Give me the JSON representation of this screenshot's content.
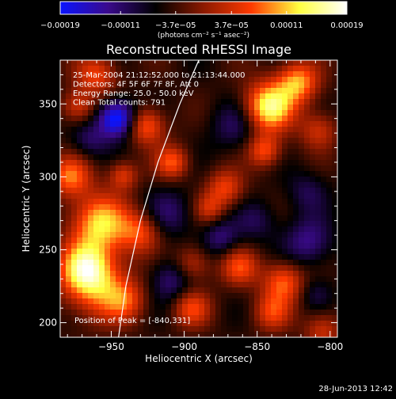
{
  "footer": {
    "timestamp": "28-Jun-2013 12:42"
  },
  "chart_data": {
    "type": "heatmap",
    "title": "Reconstructed RHESSI Image",
    "xlabel": "Heliocentric X (arcsec)",
    "ylabel": "Heliocentric Y (arcsec)",
    "xlim": [
      -985,
      -795
    ],
    "ylim": [
      190,
      380
    ],
    "x_ticks": [
      -950,
      -900,
      -850,
      -800
    ],
    "x_tick_labels": [
      "−950",
      "−900",
      "−850",
      "−800"
    ],
    "y_ticks": [
      200,
      250,
      300,
      350
    ],
    "y_tick_labels": [
      "200",
      "250",
      "300",
      "350"
    ],
    "colorbar": {
      "ticks": [
        -0.00019,
        -0.00011,
        -3.7e-05,
        3.7e-05,
        0.00011,
        0.00019
      ],
      "tick_labels": [
        "−0.00019",
        "−0.00011",
        "−3.7e−05",
        "3.7e−05",
        "0.00011",
        "0.00019"
      ],
      "range": [
        -0.00019,
        0.00019
      ],
      "units": "(photons cm⁻² s⁻¹ asec⁻²)",
      "colors": [
        "#0a14ff",
        "#3a0a8c",
        "#000000",
        "#8c1a00",
        "#ff3a00",
        "#ffff40",
        "#ffffff"
      ]
    },
    "annotations": [
      "25-Mar-2004 21:12:52.000 to 21:13:44.000",
      "Detectors: 4F 5F 6F 7F 8F, Att 0",
      "Energy Range: 25.0 - 50.0 keV",
      "Clean    Total counts: 791"
    ],
    "peak_label": "Position of Peak = [-840,331]",
    "peak": [
      -840,
      331
    ],
    "limb_curve": [
      [
        -945,
        190
      ],
      [
        -940,
        225
      ],
      [
        -930,
        270
      ],
      [
        -918,
        310
      ],
      [
        -903,
        350
      ],
      [
        -890,
        380
      ]
    ],
    "blobs": [
      {
        "x": -958,
        "y": 268,
        "r": 14,
        "v": 0.00016
      },
      {
        "x": -968,
        "y": 238,
        "r": 12,
        "v": 0.00014
      },
      {
        "x": -960,
        "y": 225,
        "r": 16,
        "v": 0.00012
      },
      {
        "x": -978,
        "y": 300,
        "r": 10,
        "v": 0.00012
      },
      {
        "x": -930,
        "y": 262,
        "r": 10,
        "v": 0.0001
      },
      {
        "x": -940,
        "y": 215,
        "r": 10,
        "v": 8e-05
      },
      {
        "x": -960,
        "y": 370,
        "r": 10,
        "v": 0.0001
      },
      {
        "x": -973,
        "y": 348,
        "r": 8,
        "v": 9e-05
      },
      {
        "x": -926,
        "y": 335,
        "r": 9,
        "v": 0.00012
      },
      {
        "x": -942,
        "y": 301,
        "r": 7,
        "v": 9e-05
      },
      {
        "x": -908,
        "y": 310,
        "r": 8,
        "v": 0.00011
      },
      {
        "x": -872,
        "y": 292,
        "r": 9,
        "v": 0.0001
      },
      {
        "x": -842,
        "y": 348,
        "r": 12,
        "v": 0.00019
      },
      {
        "x": -822,
        "y": 365,
        "r": 10,
        "v": 0.00014
      },
      {
        "x": -845,
        "y": 318,
        "r": 8,
        "v": 0.00011
      },
      {
        "x": -895,
        "y": 240,
        "r": 9,
        "v": 9e-05
      },
      {
        "x": -895,
        "y": 210,
        "r": 9,
        "v": 0.0001
      },
      {
        "x": -862,
        "y": 238,
        "r": 9,
        "v": 0.0001
      },
      {
        "x": -832,
        "y": 228,
        "r": 10,
        "v": 0.00012
      },
      {
        "x": -840,
        "y": 207,
        "r": 9,
        "v": 9e-05
      },
      {
        "x": -805,
        "y": 195,
        "r": 9,
        "v": 8e-05
      },
      {
        "x": -808,
        "y": 332,
        "r": 9,
        "v": 8e-05
      },
      {
        "x": -883,
        "y": 278,
        "r": 7,
        "v": 7e-05
      },
      {
        "x": -946,
        "y": 340,
        "r": 9,
        "v": -0.00017
      },
      {
        "x": -908,
        "y": 230,
        "r": 11,
        "v": -8e-05
      },
      {
        "x": -910,
        "y": 275,
        "r": 12,
        "v": -6e-05
      },
      {
        "x": -865,
        "y": 335,
        "r": 12,
        "v": -6e-05
      },
      {
        "x": -815,
        "y": 255,
        "r": 12,
        "v": -8e-05
      },
      {
        "x": -875,
        "y": 258,
        "r": 9,
        "v": -7e-05
      },
      {
        "x": -816,
        "y": 290,
        "r": 10,
        "v": -5e-05
      },
      {
        "x": -850,
        "y": 270,
        "r": 10,
        "v": -5e-05
      },
      {
        "x": -965,
        "y": 325,
        "r": 9,
        "v": -6e-05
      },
      {
        "x": -810,
        "y": 220,
        "r": 8,
        "v": -4e-05
      }
    ]
  }
}
